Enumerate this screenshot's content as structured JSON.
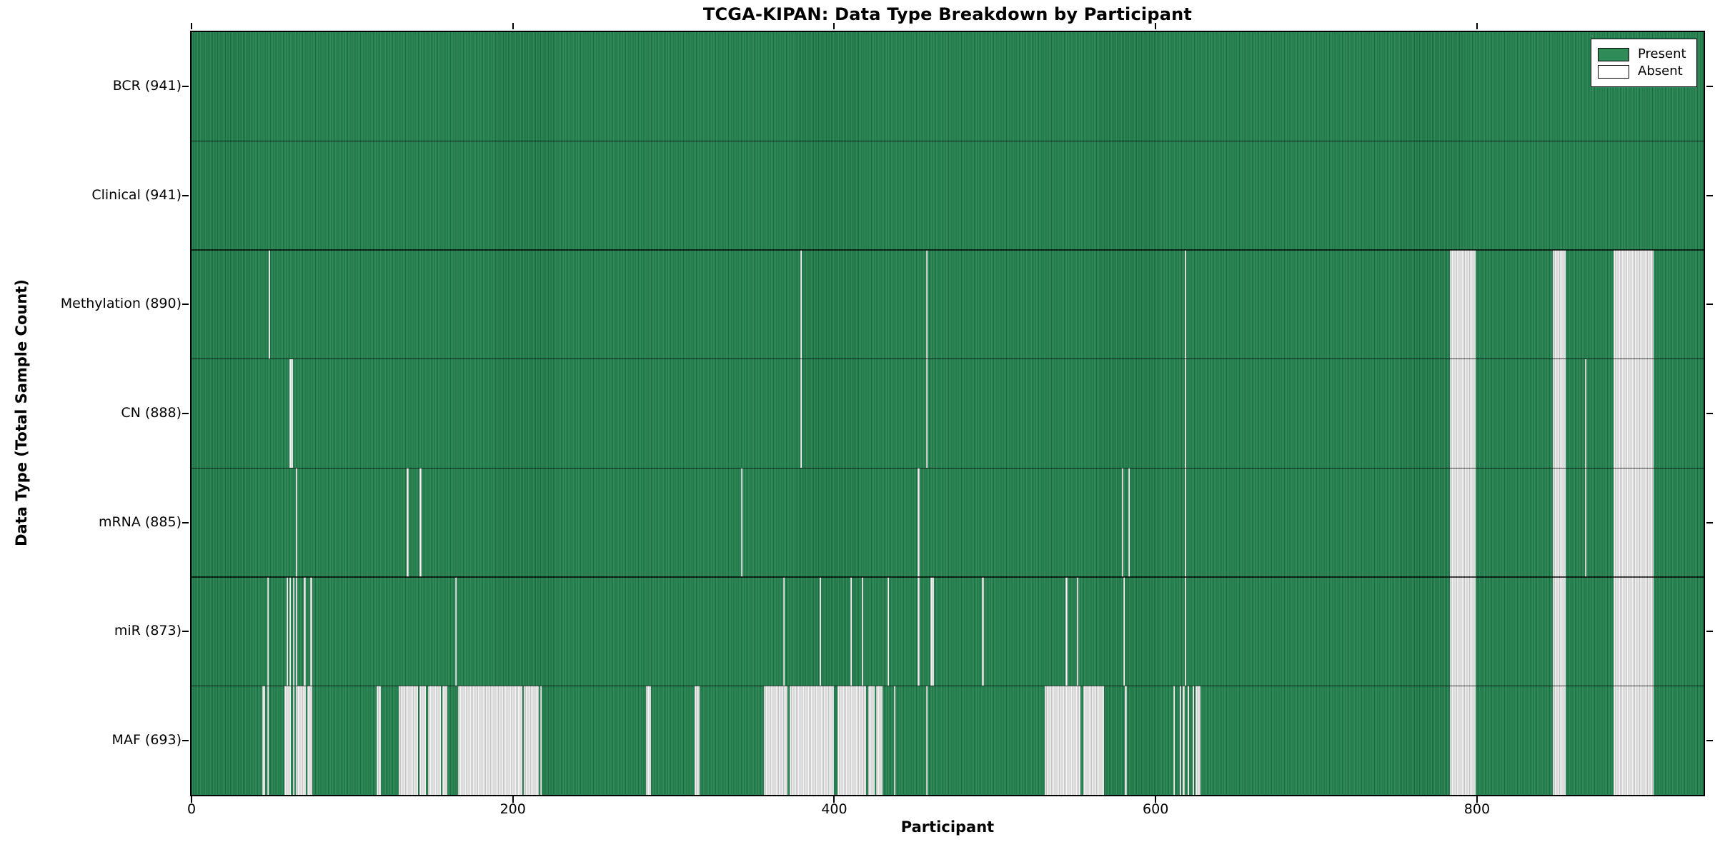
{
  "chart_data": {
    "type": "heatmap",
    "title": "TCGA-KIPAN: Data Type Breakdown by Participant",
    "xlabel": "Participant",
    "ylabel": "Data Type (Total Sample Count)",
    "x_ticks": [
      0,
      200,
      400,
      600,
      800
    ],
    "x_range": [
      0,
      941
    ],
    "n_participants": 941,
    "grid": false,
    "legend_position": "upper right",
    "legend": [
      {
        "label": "Present",
        "state": "present"
      },
      {
        "label": "Absent",
        "state": "absent"
      }
    ],
    "colors": {
      "present_fill": "#2f8b58",
      "present_edge": "#1e6b43",
      "absent_fill": "#f4f4f4",
      "absent_edge": "#c3c3c3",
      "spine": "#000000",
      "background": "#ffffff"
    },
    "rows": [
      {
        "label": "BCR (941)",
        "data_type": "BCR",
        "total_samples": 941,
        "absent_ranges": []
      },
      {
        "label": "Clinical (941)",
        "data_type": "Clinical",
        "total_samples": 941,
        "absent_ranges": []
      },
      {
        "label": "Methylation (890)",
        "data_type": "Methylation",
        "total_samples": 890,
        "absent_ranges": [
          [
            48,
            49
          ],
          [
            379,
            380
          ],
          [
            457,
            458
          ],
          [
            618,
            619
          ],
          [
            783,
            799
          ],
          [
            847,
            855
          ],
          [
            885,
            910
          ]
        ]
      },
      {
        "label": "CN (888)",
        "data_type": "CN",
        "total_samples": 888,
        "absent_ranges": [
          [
            61,
            63
          ],
          [
            379,
            380
          ],
          [
            457,
            458
          ],
          [
            618,
            619
          ],
          [
            783,
            799
          ],
          [
            847,
            855
          ],
          [
            867,
            868
          ],
          [
            885,
            910
          ]
        ]
      },
      {
        "label": "mRNA (885)",
        "data_type": "mRNA",
        "total_samples": 885,
        "absent_ranges": [
          [
            65,
            66
          ],
          [
            134,
            135
          ],
          [
            142,
            143
          ],
          [
            342,
            343
          ],
          [
            452,
            453
          ],
          [
            579,
            580
          ],
          [
            583,
            584
          ],
          [
            618,
            619
          ],
          [
            783,
            799
          ],
          [
            847,
            855
          ],
          [
            867,
            868
          ],
          [
            885,
            910
          ]
        ]
      },
      {
        "label": "miR (873)",
        "data_type": "miR",
        "total_samples": 873,
        "absent_ranges": [
          [
            47,
            48
          ],
          [
            59,
            60
          ],
          [
            61,
            62
          ],
          [
            63,
            64
          ],
          [
            65,
            66
          ],
          [
            70,
            71
          ],
          [
            74,
            75
          ],
          [
            164,
            165
          ],
          [
            368,
            369
          ],
          [
            391,
            392
          ],
          [
            410,
            411
          ],
          [
            417,
            418
          ],
          [
            433,
            434
          ],
          [
            452,
            453
          ],
          [
            460,
            462
          ],
          [
            492,
            493
          ],
          [
            544,
            545
          ],
          [
            551,
            552
          ],
          [
            580,
            581
          ],
          [
            618,
            619
          ],
          [
            783,
            799
          ],
          [
            847,
            855
          ],
          [
            885,
            910
          ]
        ]
      },
      {
        "label": "MAF (693)",
        "data_type": "MAF",
        "total_samples": 693,
        "absent_ranges": [
          [
            44,
            46
          ],
          [
            47,
            48
          ],
          [
            58,
            62
          ],
          [
            63,
            64
          ],
          [
            65,
            71
          ],
          [
            72,
            75
          ],
          [
            115,
            118
          ],
          [
            129,
            141
          ],
          [
            142,
            146
          ],
          [
            147,
            155
          ],
          [
            156,
            159
          ],
          [
            166,
            206
          ],
          [
            207,
            216
          ],
          [
            217,
            218
          ],
          [
            283,
            286
          ],
          [
            313,
            316
          ],
          [
            356,
            371
          ],
          [
            372,
            400
          ],
          [
            402,
            420
          ],
          [
            421,
            425
          ],
          [
            426,
            430
          ],
          [
            437,
            438
          ],
          [
            457,
            458
          ],
          [
            531,
            553
          ],
          [
            555,
            568
          ],
          [
            581,
            582
          ],
          [
            611,
            612
          ],
          [
            615,
            616
          ],
          [
            617,
            618
          ],
          [
            620,
            621
          ],
          [
            623,
            624
          ],
          [
            625,
            628
          ],
          [
            783,
            799
          ],
          [
            847,
            855
          ],
          [
            885,
            910
          ]
        ]
      }
    ]
  }
}
